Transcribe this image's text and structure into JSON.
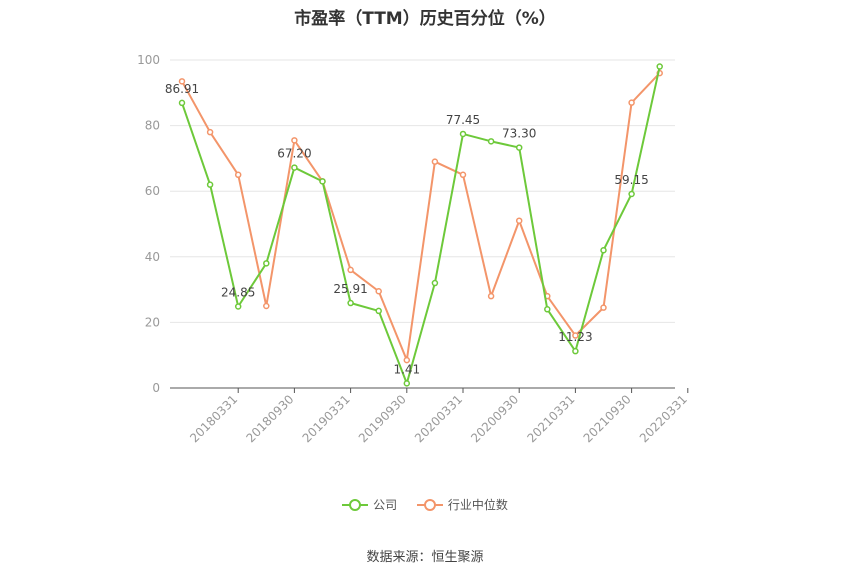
{
  "chart_data": {
    "type": "line",
    "title": "市盈率（TTM）历史百分位（%）",
    "ylim": [
      0,
      100
    ],
    "yticks": [
      0,
      20,
      40,
      60,
      80,
      100
    ],
    "xticks": [
      "20180331",
      "20180930",
      "20190331",
      "20190930",
      "20200331",
      "20200930",
      "20210331",
      "20210930",
      "20220331"
    ],
    "grid": true,
    "legend_position": "bottom",
    "series": [
      {
        "name": "公司",
        "color": "#6dc93a",
        "values": [
          86.91,
          62,
          24.85,
          38,
          67.2,
          63,
          25.91,
          23.5,
          1.41,
          32,
          77.45,
          75.2,
          73.3,
          24,
          11.23,
          42,
          59.15,
          98
        ],
        "labels": [
          "86.91",
          "",
          "24.85",
          "",
          "67.20",
          "",
          "25.91",
          "",
          "1.41",
          "",
          "77.45",
          "",
          "73.30",
          "",
          "11.23",
          "",
          "59.15",
          ""
        ]
      },
      {
        "name": "行业中位数",
        "color": "#f3956a",
        "values": [
          93.5,
          78,
          65,
          25,
          75.5,
          63,
          36,
          29.5,
          8.5,
          69,
          65,
          28,
          51,
          28,
          16,
          24.5,
          87,
          96
        ]
      }
    ],
    "source": "数据来源：恒生聚源"
  }
}
